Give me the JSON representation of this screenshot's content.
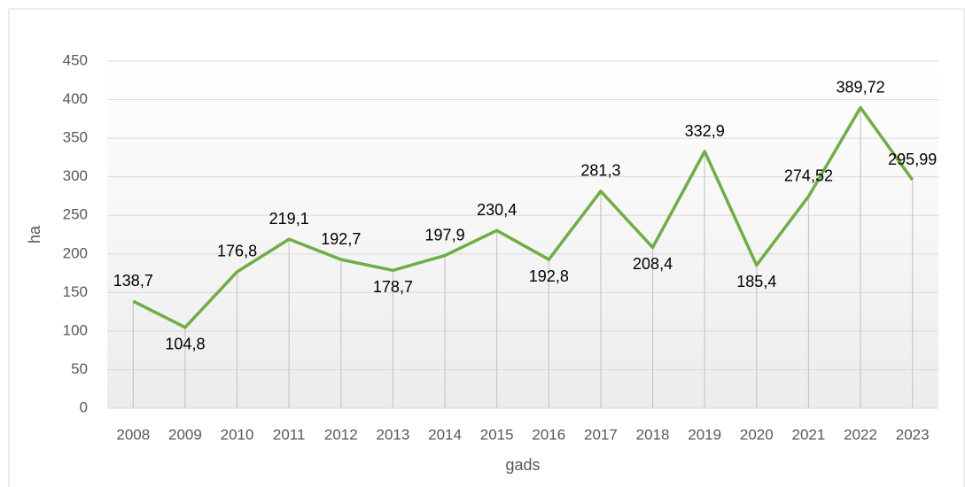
{
  "chart_data": {
    "type": "line",
    "categories": [
      "2008",
      "2009",
      "2010",
      "2011",
      "2012",
      "2013",
      "2014",
      "2015",
      "2016",
      "2017",
      "2018",
      "2019",
      "2020",
      "2021",
      "2022",
      "2023"
    ],
    "series": [
      {
        "name": "ha",
        "color": "#70ad47",
        "values": [
          138.7,
          104.8,
          176.8,
          219.1,
          192.7,
          178.7,
          197.9,
          230.4,
          192.8,
          281.3,
          208.4,
          332.9,
          185.4,
          274.52,
          389.72,
          295.99
        ],
        "value_labels": [
          "138,7",
          "104,8",
          "176,8",
          "219,1",
          "192,7",
          "178,7",
          "197,9",
          "230,4",
          "192,8",
          "281,3",
          "208,4",
          "332,9",
          "185,4",
          "274,52",
          "389,72",
          "295,99"
        ]
      }
    ],
    "ylabel": "ha",
    "xlabel": "gads",
    "ylim": [
      0,
      450
    ],
    "yticks": [
      0,
      50,
      100,
      150,
      200,
      250,
      300,
      350,
      400,
      450
    ],
    "grid": true
  }
}
